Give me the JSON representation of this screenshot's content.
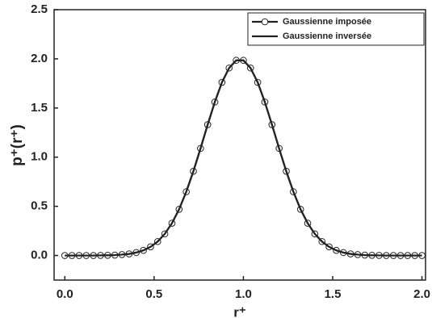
{
  "chart_data": {
    "type": "line",
    "x_label": "r⁺",
    "y_label": "p⁺(r⁺)",
    "x": [
      0,
      0.04,
      0.08,
      0.12,
      0.16,
      0.2,
      0.24,
      0.28,
      0.32,
      0.36,
      0.4,
      0.44,
      0.48,
      0.52,
      0.56,
      0.6,
      0.64,
      0.68,
      0.72,
      0.76,
      0.8,
      0.84,
      0.88,
      0.92,
      0.96,
      1.0,
      1.04,
      1.08,
      1.12,
      1.16,
      1.2,
      1.24,
      1.28,
      1.32,
      1.36,
      1.4,
      1.44,
      1.48,
      1.52,
      1.56,
      1.6,
      1.64,
      1.68,
      1.72,
      1.76,
      1.8,
      1.84,
      1.88,
      1.92,
      1.96,
      2.0
    ],
    "series": [
      {
        "name": "Gaussienne imposée",
        "color": "#222222",
        "marker": "circle",
        "values": [
          0,
          0,
          0,
          0,
          0,
          0.001,
          0.002,
          0.004,
          0.009,
          0.016,
          0.03,
          0.052,
          0.088,
          0.142,
          0.22,
          0.328,
          0.47,
          0.648,
          0.857,
          1.089,
          1.331,
          1.561,
          1.761,
          1.907,
          1.985,
          1.985,
          1.907,
          1.761,
          1.561,
          1.331,
          1.089,
          0.857,
          0.648,
          0.47,
          0.328,
          0.22,
          0.142,
          0.088,
          0.052,
          0.03,
          0.016,
          0.009,
          0.004,
          0.002,
          0.001,
          0,
          0,
          0,
          0,
          0,
          0
        ]
      },
      {
        "name": "Gaussienne inversée",
        "color": "#222222",
        "marker": "none",
        "values": [
          0,
          0,
          0,
          0,
          0,
          0.001,
          0.002,
          0.004,
          0.009,
          0.016,
          0.03,
          0.052,
          0.088,
          0.142,
          0.22,
          0.328,
          0.47,
          0.648,
          0.857,
          1.089,
          1.331,
          1.561,
          1.761,
          1.907,
          1.985,
          1.985,
          1.907,
          1.761,
          1.561,
          1.331,
          1.089,
          0.857,
          0.648,
          0.47,
          0.328,
          0.22,
          0.142,
          0.088,
          0.052,
          0.03,
          0.016,
          0.009,
          0.004,
          0.002,
          0.001,
          0,
          0,
          0,
          0,
          0,
          0
        ]
      }
    ],
    "xlim": [
      -0.06,
      2.02
    ],
    "xticks": [
      {
        "value": 0,
        "label": "0.0"
      },
      0.5,
      {
        "value": 1,
        "label": "1.0"
      },
      1.5,
      {
        "value": 2,
        "label": "2.0"
      }
    ],
    "ylim": [
      -0.25,
      2.5
    ],
    "yticks": [
      {
        "value": 0,
        "label": "0.0"
      },
      0.5,
      {
        "value": 1,
        "label": "1.0"
      },
      1.5,
      {
        "value": 2,
        "label": "2.0"
      },
      2.5
    ],
    "legend": "upper right",
    "grid": false
  }
}
